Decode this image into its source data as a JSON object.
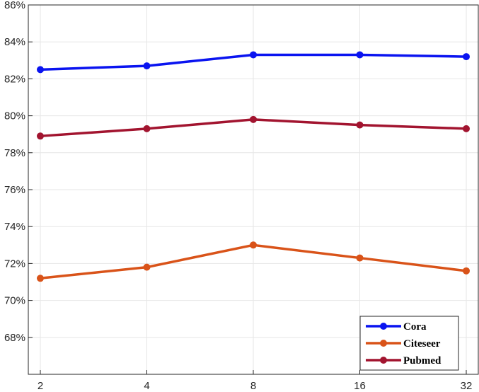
{
  "chart_data": {
    "type": "line",
    "title": "",
    "xlabel": "",
    "ylabel": "",
    "x_tick_labels": [
      "2",
      "4",
      "8",
      "16",
      "32"
    ],
    "y_tick_labels": [
      "68%",
      "70%",
      "72%",
      "74%",
      "76%",
      "78%",
      "80%",
      "82%",
      "84%",
      "86%"
    ],
    "y_ticks": [
      68,
      70,
      72,
      74,
      76,
      78,
      80,
      82,
      84,
      86
    ],
    "ylim": [
      66,
      86
    ],
    "x_scale": "log2",
    "grid": true,
    "legend_position": "bottom-right",
    "series": [
      {
        "name": "Cora",
        "color": "#0a14f0",
        "values": [
          82.5,
          82.7,
          83.3,
          83.3,
          83.2
        ]
      },
      {
        "name": "Citeseer",
        "color": "#d95319",
        "values": [
          71.2,
          71.8,
          73.0,
          72.3,
          71.6
        ]
      },
      {
        "name": "Pubmed",
        "color": "#a2142f",
        "values": [
          78.9,
          79.3,
          79.8,
          79.5,
          79.3
        ]
      }
    ]
  }
}
